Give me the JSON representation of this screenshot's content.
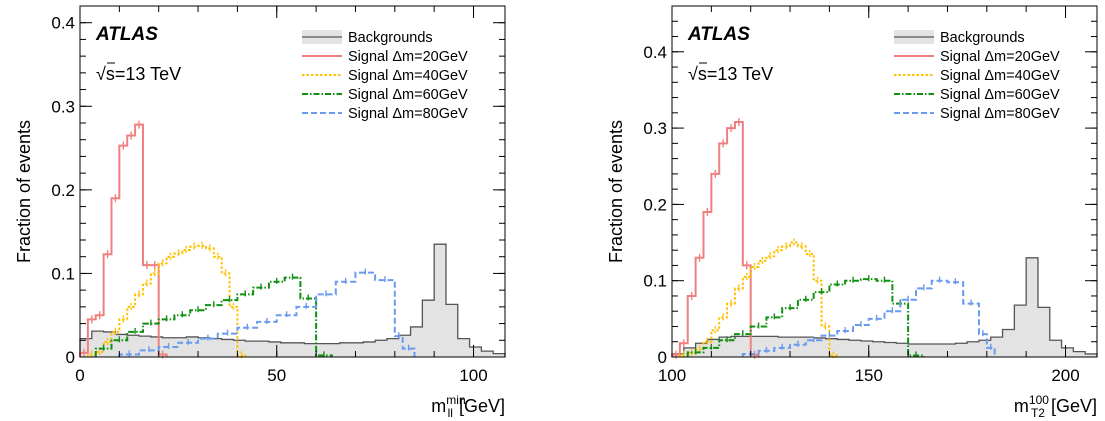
{
  "chart_data": [
    {
      "type": "histogram",
      "experiment": "ATLAS",
      "energy_prefix": "√",
      "energy_label": "s=13 TeV",
      "ylabel": "Fraction of events",
      "xlabel_main": "m",
      "xlabel_sub": "ll",
      "xlabel_sup": "min",
      "xlabel_unit": "[GeV]",
      "xlim": [
        0,
        108
      ],
      "ylim": [
        0,
        0.42
      ],
      "x_ticks": [
        0,
        50,
        100
      ],
      "y_ticks": [
        0,
        0.1,
        0.2,
        0.3,
        0.4
      ],
      "y_tick_labels": [
        "0",
        "0.1",
        "0.2",
        "0.3",
        "0.4"
      ],
      "legend_position": "top-right",
      "series": [
        {
          "name": "Backgrounds",
          "style": "filled",
          "color": "#555555",
          "fill": "#e3e3e3",
          "edges": [
            0,
            3,
            6,
            9,
            12,
            15,
            18,
            21,
            24,
            27,
            30,
            33,
            36,
            39,
            42,
            45,
            48,
            51,
            54,
            57,
            60,
            63,
            66,
            69,
            72,
            75,
            78,
            81,
            84,
            87,
            90,
            93,
            96,
            99,
            102,
            105,
            108
          ],
          "values": [
            0.022,
            0.031,
            0.03,
            0.027,
            0.026,
            0.025,
            0.024,
            0.023,
            0.023,
            0.024,
            0.023,
            0.022,
            0.021,
            0.02,
            0.019,
            0.019,
            0.018,
            0.017,
            0.017,
            0.016,
            0.016,
            0.016,
            0.017,
            0.017,
            0.018,
            0.02,
            0.022,
            0.026,
            0.036,
            0.068,
            0.135,
            0.063,
            0.022,
            0.012,
            0.007,
            0.004
          ]
        },
        {
          "name": "Signal Δm=20GeV",
          "style": "solid",
          "color": "#f08080",
          "edges": [
            0,
            2,
            4,
            6,
            8,
            10,
            12,
            14,
            16,
            18,
            20,
            22
          ],
          "values": [
            0.005,
            0.045,
            0.05,
            0.123,
            0.19,
            0.253,
            0.265,
            0.278,
            0.11,
            0.11,
            0.003
          ]
        },
        {
          "name": "Signal Δm=40GeV",
          "style": "dotted",
          "color": "#ffc000",
          "edges": [
            2,
            4,
            6,
            8,
            10,
            12,
            14,
            16,
            18,
            20,
            22,
            24,
            26,
            28,
            30,
            32,
            34,
            36,
            38,
            40,
            42
          ],
          "values": [
            0.003,
            0.006,
            0.018,
            0.03,
            0.045,
            0.06,
            0.075,
            0.088,
            0.1,
            0.112,
            0.12,
            0.124,
            0.128,
            0.132,
            0.133,
            0.13,
            0.12,
            0.1,
            0.06,
            0.002
          ]
        },
        {
          "name": "Signal Δm=60GeV",
          "style": "dashdot",
          "color": "#109010",
          "edges": [
            4,
            8,
            12,
            16,
            20,
            24,
            28,
            32,
            36,
            40,
            44,
            48,
            52,
            56,
            60,
            64
          ],
          "values": [
            0.01,
            0.02,
            0.03,
            0.04,
            0.045,
            0.05,
            0.056,
            0.062,
            0.068,
            0.075,
            0.083,
            0.09,
            0.095,
            0.07,
            0.002
          ]
        },
        {
          "name": "Signal Δm=80GeV",
          "style": "dashed",
          "color": "#6a9bf0",
          "edges": [
            10,
            15,
            20,
            25,
            30,
            35,
            40,
            45,
            50,
            55,
            60,
            65,
            70,
            75,
            80,
            82,
            85
          ],
          "values": [
            0.003,
            0.008,
            0.012,
            0.017,
            0.022,
            0.028,
            0.035,
            0.042,
            0.05,
            0.06,
            0.075,
            0.09,
            0.101,
            0.092,
            0.025,
            0.01
          ]
        }
      ]
    },
    {
      "type": "histogram",
      "experiment": "ATLAS",
      "energy_prefix": "√",
      "energy_label": "s=13 TeV",
      "ylabel": "Fraction of events",
      "xlabel_main": "m",
      "xlabel_sub": "T2",
      "xlabel_sup": "100",
      "xlabel_unit": "[GeV]",
      "xlim": [
        100,
        208
      ],
      "ylim": [
        0,
        0.46
      ],
      "x_ticks": [
        100,
        150,
        200
      ],
      "y_ticks": [
        0,
        0.1,
        0.2,
        0.3,
        0.4
      ],
      "y_tick_labels": [
        "0",
        "0.1",
        "0.2",
        "0.3",
        "0.4"
      ],
      "legend_position": "top-right",
      "series": [
        {
          "name": "Backgrounds",
          "style": "filled",
          "color": "#555555",
          "fill": "#e3e3e3",
          "edges": [
            100,
            103,
            106,
            109,
            112,
            115,
            118,
            121,
            124,
            127,
            130,
            133,
            136,
            139,
            142,
            145,
            148,
            151,
            154,
            157,
            160,
            163,
            166,
            169,
            172,
            175,
            178,
            181,
            184,
            187,
            190,
            193,
            196,
            199,
            202,
            205,
            208
          ],
          "values": [
            0.004,
            0.012,
            0.018,
            0.023,
            0.026,
            0.027,
            0.027,
            0.027,
            0.027,
            0.026,
            0.026,
            0.026,
            0.025,
            0.024,
            0.023,
            0.022,
            0.021,
            0.02,
            0.019,
            0.018,
            0.017,
            0.017,
            0.017,
            0.017,
            0.018,
            0.02,
            0.022,
            0.026,
            0.036,
            0.068,
            0.13,
            0.065,
            0.022,
            0.012,
            0.007,
            0.004
          ]
        },
        {
          "name": "Signal Δm=20GeV",
          "style": "solid",
          "color": "#f08080",
          "edges": [
            100,
            102,
            104,
            106,
            108,
            110,
            112,
            114,
            116,
            118,
            120,
            122
          ],
          "values": [
            0.003,
            0.018,
            0.08,
            0.13,
            0.19,
            0.24,
            0.28,
            0.3,
            0.308,
            0.12,
            0.003
          ]
        },
        {
          "name": "Signal Δm=40GeV",
          "style": "dotted",
          "color": "#ffc000",
          "edges": [
            102,
            104,
            106,
            108,
            110,
            112,
            114,
            116,
            118,
            120,
            122,
            124,
            126,
            128,
            130,
            132,
            134,
            136,
            138,
            140,
            142
          ],
          "values": [
            0.003,
            0.005,
            0.01,
            0.02,
            0.035,
            0.052,
            0.07,
            0.09,
            0.105,
            0.118,
            0.126,
            0.132,
            0.14,
            0.145,
            0.15,
            0.145,
            0.135,
            0.1,
            0.04,
            0.002
          ]
        },
        {
          "name": "Signal Δm=60GeV",
          "style": "dashdot",
          "color": "#109010",
          "edges": [
            104,
            108,
            112,
            116,
            120,
            124,
            128,
            132,
            136,
            140,
            144,
            148,
            152,
            156,
            160,
            164
          ],
          "values": [
            0.006,
            0.012,
            0.022,
            0.03,
            0.04,
            0.052,
            0.064,
            0.075,
            0.085,
            0.095,
            0.1,
            0.102,
            0.1,
            0.07,
            0.002
          ]
        },
        {
          "name": "Signal Δm=80GeV",
          "style": "dashed",
          "color": "#6a9bf0",
          "edges": [
            118,
            122,
            126,
            130,
            134,
            138,
            142,
            146,
            150,
            154,
            158,
            162,
            166,
            170,
            174,
            178,
            180,
            182
          ],
          "values": [
            0.004,
            0.008,
            0.012,
            0.016,
            0.022,
            0.028,
            0.034,
            0.042,
            0.05,
            0.06,
            0.075,
            0.09,
            0.1,
            0.098,
            0.07,
            0.03,
            0.012
          ]
        }
      ]
    }
  ]
}
